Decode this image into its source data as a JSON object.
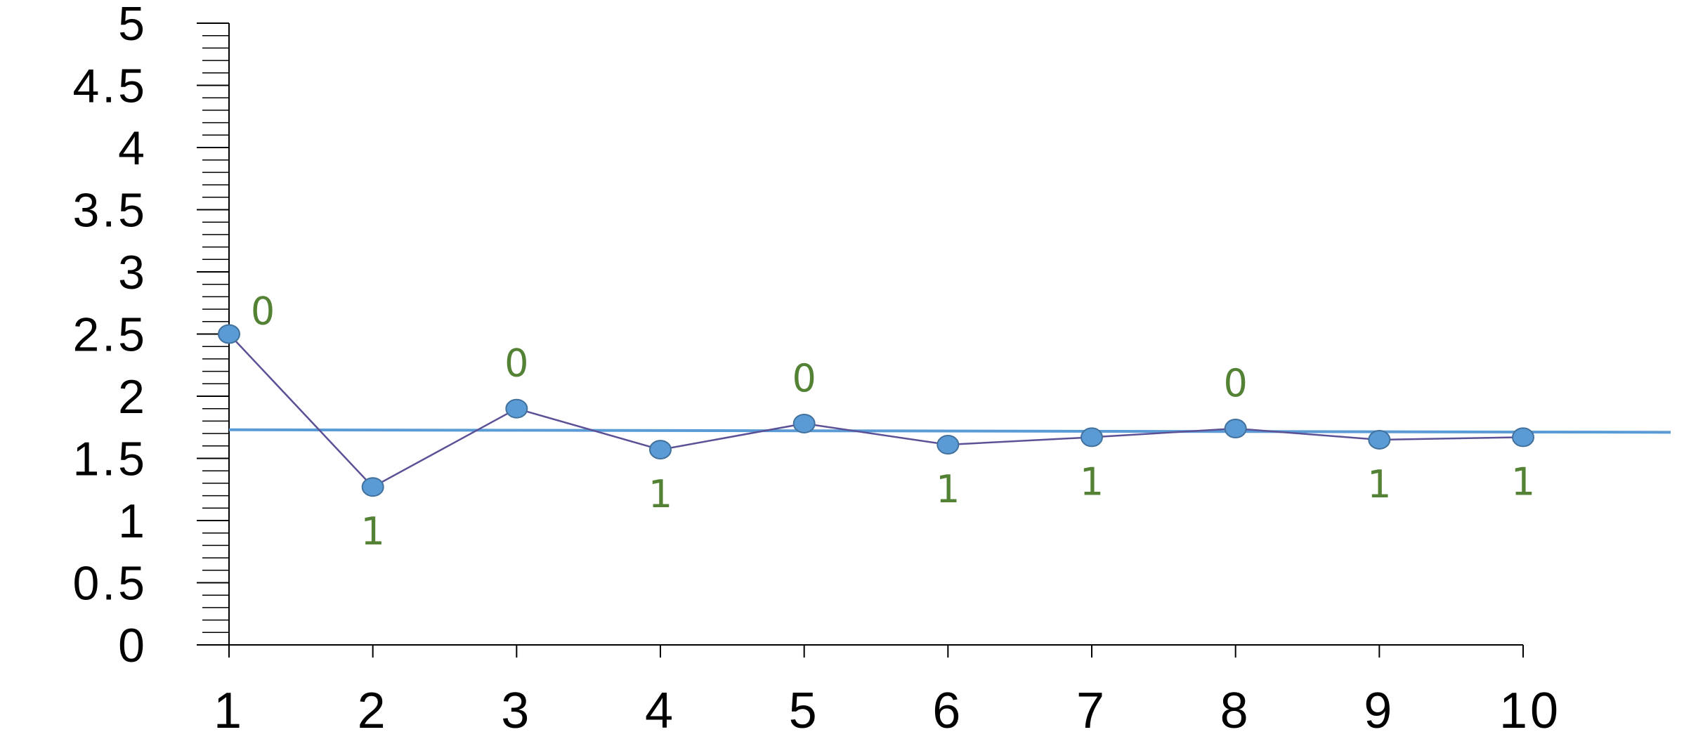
{
  "chart_data": {
    "type": "line",
    "title": "",
    "xlabel": "",
    "ylabel": "",
    "x": [
      1,
      2,
      3,
      4,
      5,
      6,
      7,
      8,
      9,
      10
    ],
    "series": [
      {
        "values": [
          2.5,
          1.27,
          1.9,
          1.57,
          1.78,
          1.61,
          1.67,
          1.74,
          1.65,
          1.67
        ]
      }
    ],
    "point_labels": [
      "0",
      "1",
      "0",
      "1",
      "0",
      "1",
      "1",
      "0",
      "1",
      "1"
    ],
    "reference_line": {
      "y_start": 1.73,
      "y_end": 1.71
    },
    "xlim": [
      1,
      10
    ],
    "ylim": [
      0,
      5
    ],
    "x_ticks": [
      "1",
      "2",
      "3",
      "4",
      "5",
      "6",
      "7",
      "8",
      "9",
      "10"
    ],
    "y_ticks": [
      "0",
      "0.5",
      "1",
      "1.5",
      "2",
      "2.5",
      "3",
      "3.5",
      "4",
      "4.5",
      "5"
    ],
    "grid": false,
    "legend": "none",
    "colors": {
      "marker": "#5b9bd5",
      "marker_stroke": "#41719c",
      "series_line": "#5b5196",
      "reference_line": "#5b9bd5",
      "point_label": "#548235",
      "axis": "#000000"
    }
  }
}
